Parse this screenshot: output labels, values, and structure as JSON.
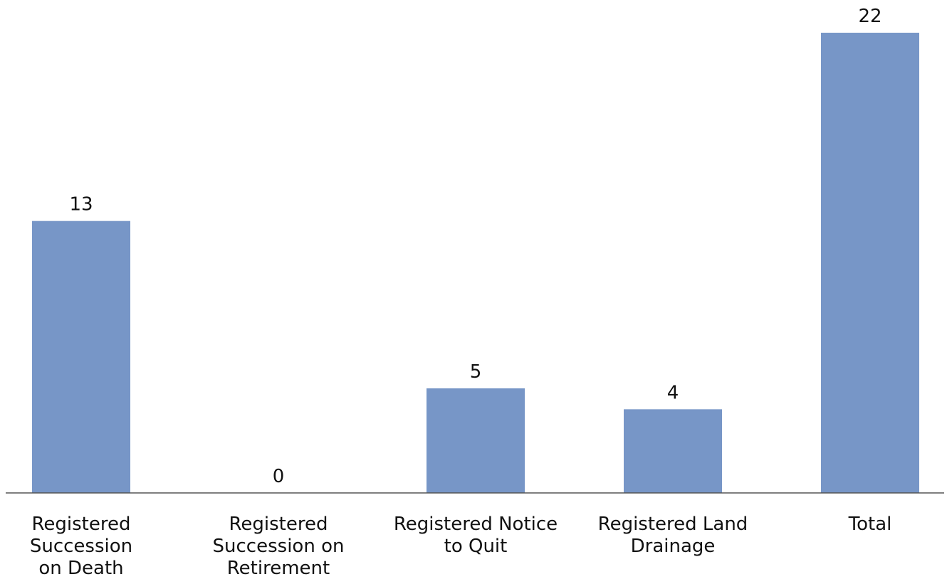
{
  "chart_data": {
    "type": "bar",
    "title": "",
    "xlabel": "",
    "ylabel": "",
    "categories": [
      "Registered Succession on Death",
      "Registered Succession on Retirement",
      "Registered Notice to Quit",
      "Registered Land Drainage",
      "Total"
    ],
    "category_lines": [
      [
        "Registered",
        "Succession",
        "on Death"
      ],
      [
        "Registered",
        "Succession on",
        "Retirement"
      ],
      [
        "Registered Notice",
        "to Quit"
      ],
      [
        "Registered Land",
        "Drainage"
      ],
      [
        "Total"
      ]
    ],
    "values": [
      13,
      0,
      5,
      4,
      22
    ],
    "data_labels": [
      "13",
      "0",
      "5",
      "4",
      "22"
    ],
    "ylim": [
      0,
      22
    ],
    "grid": false,
    "legend": "none",
    "bar_color": "#7796c7",
    "axis_color": "#555555"
  }
}
